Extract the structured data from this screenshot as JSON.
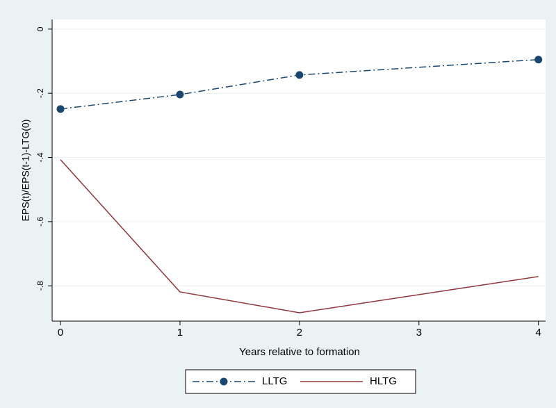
{
  "chart_data": {
    "type": "line",
    "x_label": "Years relative to formation",
    "y_label": "EPS(t)/EPS(t-1)-LTG(0)",
    "xlim": [
      -0.07,
      4.06
    ],
    "xticks": [
      0,
      1,
      2,
      3,
      4
    ],
    "ylim": [
      -0.91,
      0.03
    ],
    "yticks": [
      {
        "value": 0,
        "label": "0"
      },
      {
        "value": -0.2,
        "label": "-.2"
      },
      {
        "value": -0.4,
        "label": "-.4"
      },
      {
        "value": -0.6,
        "label": "-.6"
      },
      {
        "value": -0.8,
        "label": "-.8"
      }
    ],
    "grid": true,
    "legend": "bottom",
    "series": [
      {
        "name": "LLTG",
        "color": "#1a476f",
        "style": "dash-dot",
        "markers": true,
        "x": [
          0,
          1,
          2,
          4
        ],
        "values": [
          -0.249,
          -0.204,
          -0.143,
          -0.095
        ]
      },
      {
        "name": "HLTG",
        "color": "#90353b",
        "style": "solid",
        "markers": false,
        "x": [
          0,
          1,
          2,
          4
        ],
        "values": [
          -0.407,
          -0.819,
          -0.884,
          -0.771
        ]
      }
    ]
  }
}
